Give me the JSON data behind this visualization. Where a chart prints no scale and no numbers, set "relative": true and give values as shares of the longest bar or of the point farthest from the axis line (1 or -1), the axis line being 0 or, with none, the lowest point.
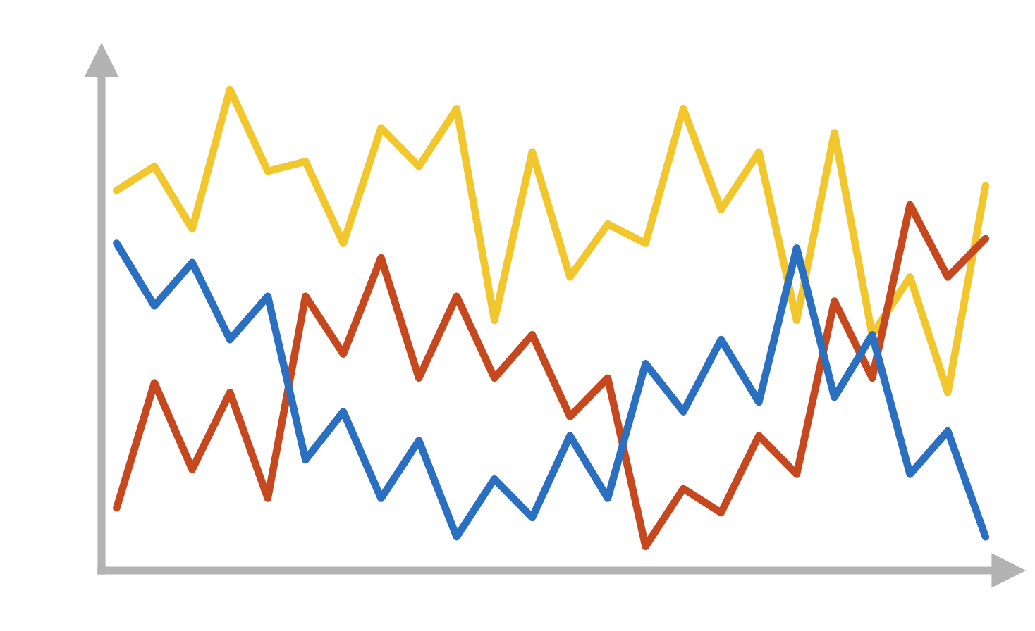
{
  "chart_data": {
    "type": "line",
    "relative": true,
    "categories": [
      null,
      null,
      null,
      null,
      null,
      null,
      null,
      null,
      null,
      null,
      null,
      null,
      null,
      null,
      null,
      null,
      null,
      null,
      null,
      null,
      null,
      null,
      null,
      null
    ],
    "series": [
      {
        "color": "#f2c72e",
        "values": [
          0.79,
          0.84,
          0.71,
          1.0,
          0.83,
          0.85,
          0.68,
          0.92,
          0.84,
          0.96,
          0.52,
          0.87,
          0.61,
          0.72,
          0.68,
          0.96,
          0.75,
          0.87,
          0.52,
          0.91,
          0.49,
          0.61,
          0.37,
          0.8
        ]
      },
      {
        "color": "#c5481f",
        "values": [
          0.13,
          0.39,
          0.21,
          0.37,
          0.15,
          0.57,
          0.45,
          0.65,
          0.4,
          0.57,
          0.4,
          0.49,
          0.32,
          0.4,
          0.05,
          0.17,
          0.12,
          0.28,
          0.2,
          0.56,
          0.4,
          0.76,
          0.61,
          0.69
        ]
      },
      {
        "color": "#2a6fc0",
        "values": [
          0.68,
          0.55,
          0.64,
          0.48,
          0.57,
          0.23,
          0.33,
          0.15,
          0.27,
          0.07,
          0.19,
          0.11,
          0.28,
          0.15,
          0.43,
          0.33,
          0.48,
          0.35,
          0.67,
          0.36,
          0.49,
          0.2,
          0.29,
          0.07
        ]
      }
    ],
    "grid": false,
    "legend": false,
    "marker": "none",
    "line_style": "solid"
  }
}
